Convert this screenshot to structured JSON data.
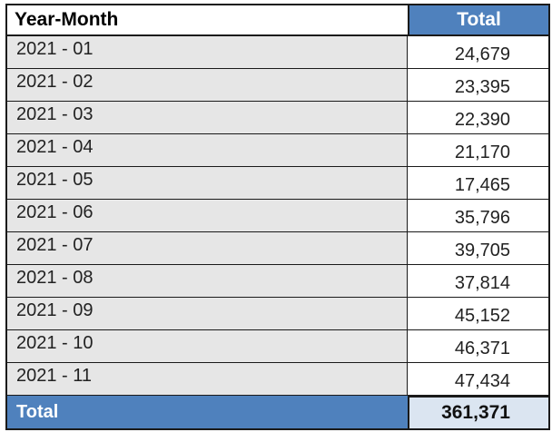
{
  "table": {
    "headers": {
      "year_month": "Year-Month",
      "total": "Total"
    },
    "rows": [
      {
        "year_month": "2021 - 01",
        "total": "24,679"
      },
      {
        "year_month": "2021 - 02",
        "total": "23,395"
      },
      {
        "year_month": "2021 - 03",
        "total": "22,390"
      },
      {
        "year_month": "2021 - 04",
        "total": "21,170"
      },
      {
        "year_month": "2021 - 05",
        "total": "17,465"
      },
      {
        "year_month": "2021 - 06",
        "total": "35,796"
      },
      {
        "year_month": "2021 - 07",
        "total": "39,705"
      },
      {
        "year_month": "2021 - 08",
        "total": "37,814"
      },
      {
        "year_month": "2021 - 09",
        "total": "45,152"
      },
      {
        "year_month": "2021 - 10",
        "total": "46,371"
      },
      {
        "year_month": "2021 - 11",
        "total": "47,434"
      }
    ],
    "footer": {
      "label": "Total",
      "value": "361,371"
    }
  },
  "colors": {
    "header_accent": "#4f81bd",
    "row_label_bg": "#e6e6e6",
    "footer_value_bg": "#dbe5f1"
  }
}
